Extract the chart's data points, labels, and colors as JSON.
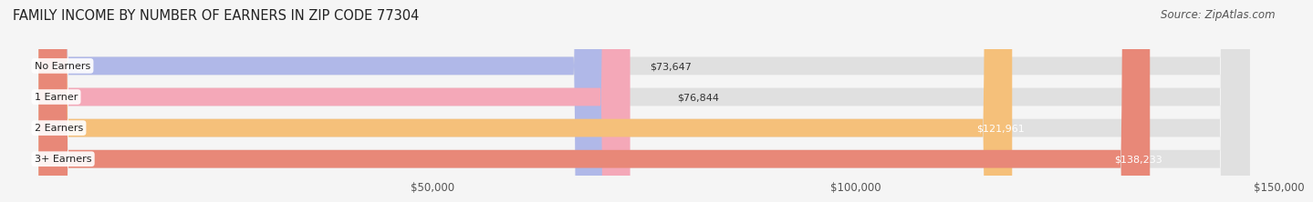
{
  "title": "FAMILY INCOME BY NUMBER OF EARNERS IN ZIP CODE 77304",
  "source": "Source: ZipAtlas.com",
  "categories": [
    "No Earners",
    "1 Earner",
    "2 Earners",
    "3+ Earners"
  ],
  "values": [
    73647,
    76844,
    121961,
    138233
  ],
  "bar_colors": [
    "#b0b8e8",
    "#f4a8b8",
    "#f5c07a",
    "#e88878"
  ],
  "bar_bg_color": "#e0e0e0",
  "value_labels": [
    "$73,647",
    "$76,844",
    "$121,961",
    "$138,233"
  ],
  "xlim": [
    0,
    150000
  ],
  "xticks": [
    50000,
    100000,
    150000
  ],
  "xtick_labels": [
    "$50,000",
    "$100,000",
    "$150,000"
  ],
  "bg_color": "#f5f5f5",
  "title_fontsize": 10.5,
  "source_fontsize": 8.5,
  "bar_height": 0.58,
  "fig_width": 14.06,
  "fig_height": 2.33,
  "inside_label_threshold": 90000
}
